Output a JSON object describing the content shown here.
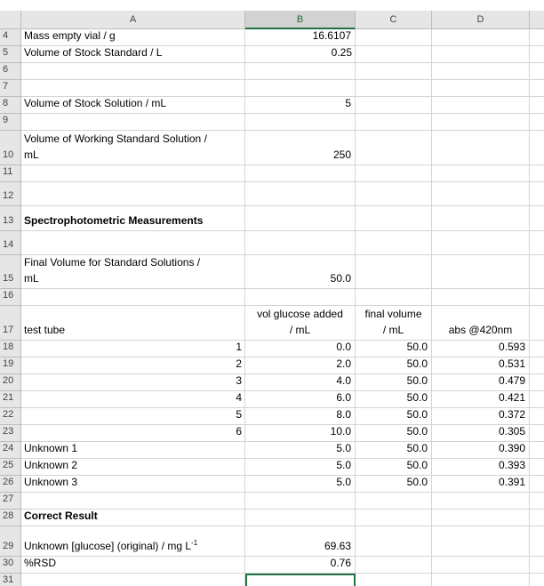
{
  "columns": [
    "A",
    "B",
    "C",
    "D"
  ],
  "rows": [
    {
      "row": "4",
      "A": "Mass empty vial / g",
      "B": "16.6107"
    },
    {
      "row": "5",
      "A": "Volume of Stock Standard / L",
      "B": "0.25"
    },
    {
      "row": "6"
    },
    {
      "row": "7"
    },
    {
      "row": "8",
      "A": "Volume of Stock Solution / mL",
      "B": "5"
    },
    {
      "row": "9"
    },
    {
      "row": "10",
      "A": "Volume of Working Standard Solution /\nmL",
      "B": "250"
    },
    {
      "row": "11"
    },
    {
      "row": "12"
    },
    {
      "row": "13",
      "A": "Spectrophotometric Measurements"
    },
    {
      "row": "14"
    },
    {
      "row": "15",
      "A": "Final Volume for Standard Solutions /\nmL",
      "B": "50.0"
    },
    {
      "row": "16"
    },
    {
      "row": "17",
      "A": "test tube",
      "B": "vol glucose added\n/ mL",
      "C": "final volume\n/ mL",
      "D": "abs @420nm"
    },
    {
      "row": "18",
      "A": "1",
      "B": "0.0",
      "C": "50.0",
      "D": "0.593"
    },
    {
      "row": "19",
      "A": "2",
      "B": "2.0",
      "C": "50.0",
      "D": "0.531"
    },
    {
      "row": "20",
      "A": "3",
      "B": "4.0",
      "C": "50.0",
      "D": "0.479"
    },
    {
      "row": "21",
      "A": "4",
      "B": "6.0",
      "C": "50.0",
      "D": "0.421"
    },
    {
      "row": "22",
      "A": "5",
      "B": "8.0",
      "C": "50.0",
      "D": "0.372"
    },
    {
      "row": "23",
      "A": "6",
      "B": "10.0",
      "C": "50.0",
      "D": "0.305"
    },
    {
      "row": "24",
      "A": "Unknown 1",
      "B": "5.0",
      "C": "50.0",
      "D": "0.390"
    },
    {
      "row": "25",
      "A": "Unknown 2",
      "B": "5.0",
      "C": "50.0",
      "D": "0.393"
    },
    {
      "row": "26",
      "A": "Unknown 3",
      "B": "5.0",
      "C": "50.0",
      "D": "0.391"
    },
    {
      "row": "27"
    },
    {
      "row": "28",
      "A": "Correct Result"
    },
    {
      "row": "29",
      "A": "Unknown [glucose] (original) / mg L",
      "A_sup": "-1",
      "B": "69.63"
    },
    {
      "row": "30",
      "A": "%RSD",
      "B": "0.76"
    },
    {
      "row": "31"
    }
  ]
}
